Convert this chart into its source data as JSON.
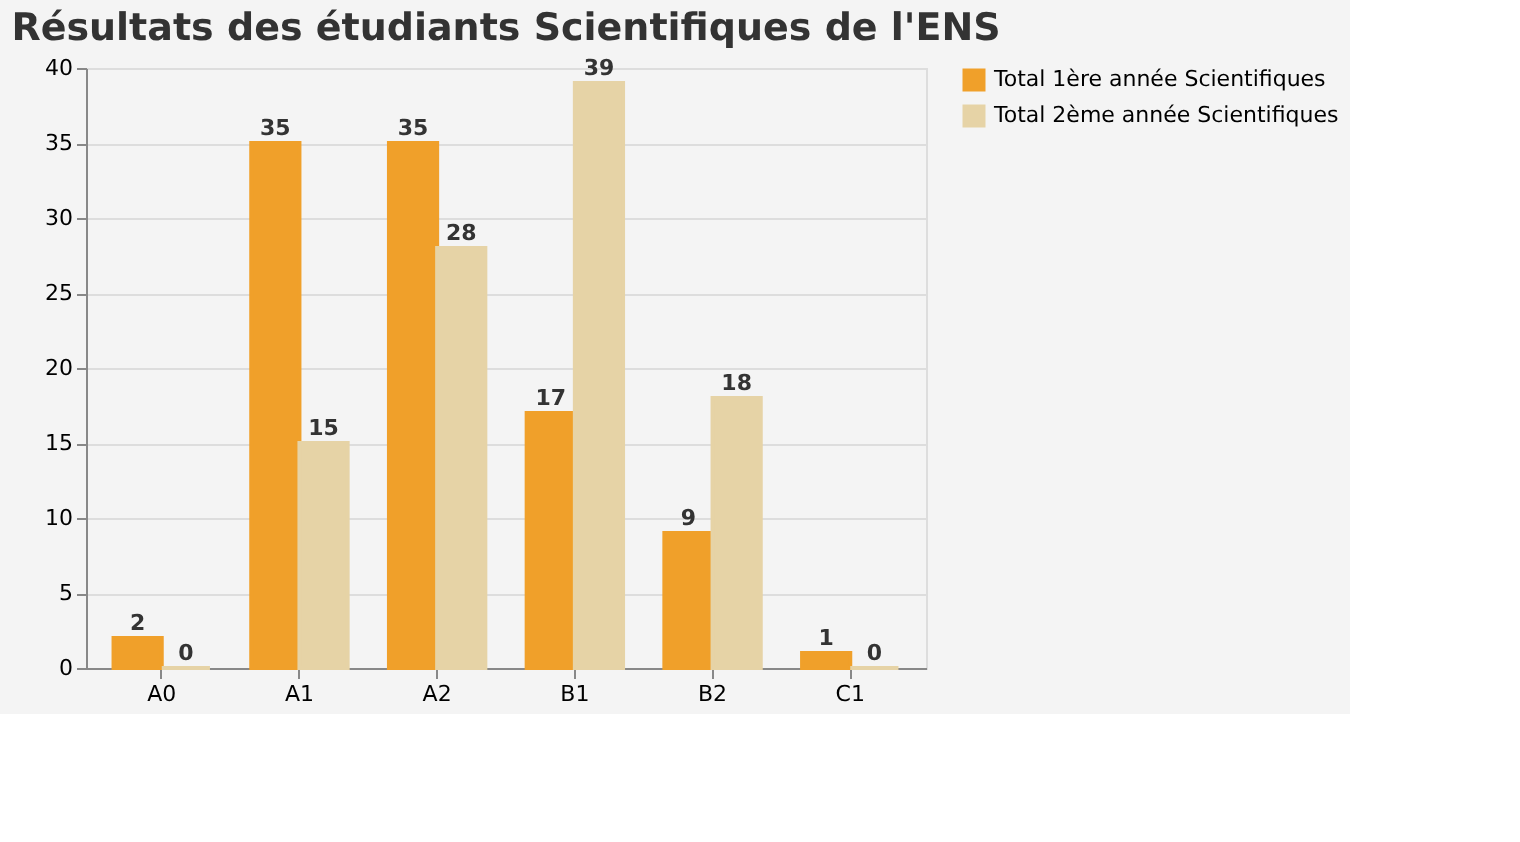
{
  "chart_data": {
    "type": "bar",
    "title": "Résultats des étudiants Scientifiques de l'ENS",
    "categories": [
      "A0",
      "A1",
      "A2",
      "B1",
      "B2",
      "C1"
    ],
    "series": [
      {
        "name": "Total 1ère année Scientifiques",
        "color": "#f0a02a",
        "values": [
          2,
          35,
          35,
          17,
          9,
          1
        ]
      },
      {
        "name": "Total 2ème année Scientifiques",
        "color": "#e6d3a6",
        "values": [
          0,
          15,
          28,
          39,
          18,
          0
        ]
      }
    ],
    "ylim": [
      0,
      40
    ],
    "yticks": [
      0,
      5,
      10,
      15,
      20,
      25,
      30,
      35,
      40
    ],
    "grid": "y",
    "legend": "right",
    "data_labels": true
  }
}
